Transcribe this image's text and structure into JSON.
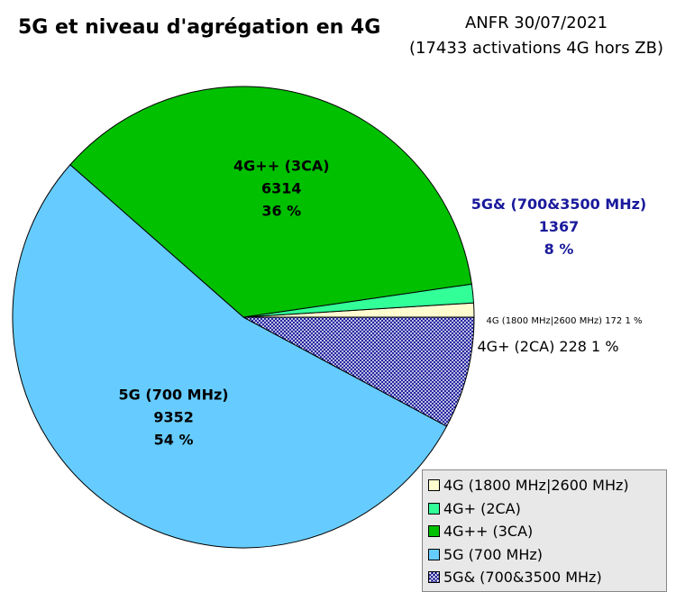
{
  "title": "5G et niveau d'agrégation en 4G",
  "subtitle_line1": "ANFR 30/07/2021",
  "subtitle_line2": "(17433 activations 4G hors ZB)",
  "colors": {
    "4g": "#fffdd0",
    "4g_plus": "#33ff99",
    "4g_plusplus": "#00c000",
    "5g_700": "#66ccff",
    "5g_700_3500": "#1a1a9c"
  },
  "chart_data": {
    "type": "pie",
    "start_angle_deg": 0,
    "direction": "counter-clockwise",
    "slices": [
      {
        "key": "4g",
        "label": "4G (1800 MHz|2600 MHz)",
        "value": 172,
        "percent": "1 %",
        "slice_label": "4G (1800 MHz|2600 MHz) 172 1 %",
        "color": "#fffdd0",
        "pattern": false
      },
      {
        "key": "4g_plus",
        "label": "4G+ (2CA)",
        "value": 228,
        "percent": "1 %",
        "slice_label": "4G+ (2CA) 228 1 %",
        "color": "#33ff99",
        "pattern": false
      },
      {
        "key": "4g_plusplus",
        "label": "4G++ (3CA)",
        "value": 6314,
        "percent": "36 %",
        "color": "#00c000",
        "pattern": false
      },
      {
        "key": "5g_700",
        "label": "5G (700 MHz)",
        "value": 9352,
        "percent": "54 %",
        "color": "#66ccff",
        "pattern": false
      },
      {
        "key": "5g_700_3500",
        "label": "5G& (700&3500 MHz)",
        "value": 1367,
        "percent": "8 %",
        "color": "#1a1a9c",
        "pattern": true
      }
    ],
    "legend": {
      "placement": "bottom-right",
      "items": [
        "4G (1800 MHz|2600 MHz)",
        "4G+ (2CA)",
        "4G++ (3CA)",
        "5G (700 MHz)",
        "5G& (700&3500 MHz)"
      ]
    }
  }
}
